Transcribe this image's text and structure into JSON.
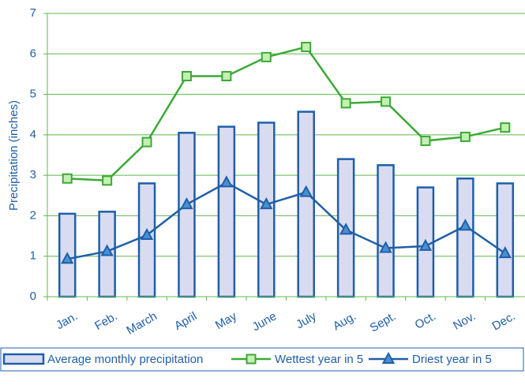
{
  "chart_data": {
    "type": "bar",
    "y_label": "Precipitation (inches)",
    "categories": [
      "Jan.",
      "Feb.",
      "March",
      "April",
      "May",
      "June",
      "July",
      "Aug.",
      "Sept.",
      "Oct.",
      "Nov.",
      "Dec."
    ],
    "series": [
      {
        "name": "Average monthly precipitation",
        "type": "bar",
        "color": "#d9dcf1",
        "edge_color": "#1f5fa8",
        "values": [
          2.05,
          2.1,
          2.8,
          4.05,
          4.2,
          4.3,
          4.57,
          3.4,
          3.25,
          2.7,
          2.92,
          2.8
        ]
      },
      {
        "name": "Wettest year in 5",
        "type": "line",
        "color": "#3aaa35",
        "marker": "square",
        "marker_color": "#c6efb4",
        "values": [
          2.92,
          2.87,
          3.82,
          5.45,
          5.45,
          5.92,
          6.17,
          4.78,
          4.82,
          3.85,
          3.95,
          4.18
        ]
      },
      {
        "name": "Driest year in 5",
        "type": "line",
        "color": "#1f5fa8",
        "marker": "triangle",
        "marker_color": "#4a8fd0",
        "values": [
          0.93,
          1.12,
          1.52,
          2.28,
          2.82,
          2.28,
          2.58,
          1.65,
          1.2,
          1.25,
          1.75,
          1.07
        ]
      }
    ],
    "ylim": [
      0,
      7
    ],
    "yticks": [
      0,
      1,
      2,
      3,
      4,
      5,
      6,
      7
    ],
    "grid": true,
    "grid_color": "#5cb84a",
    "legend": "bottom"
  }
}
